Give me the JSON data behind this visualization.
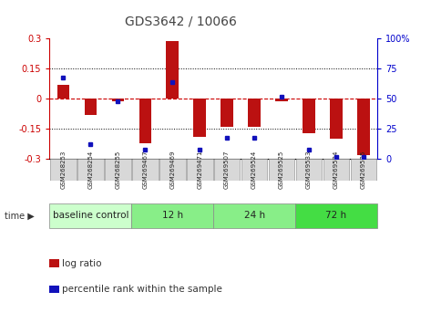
{
  "title": "GDS3642 / 10066",
  "samples": [
    "GSM268253",
    "GSM268254",
    "GSM268255",
    "GSM269467",
    "GSM269469",
    "GSM269471",
    "GSM269507",
    "GSM269524",
    "GSM269525",
    "GSM269533",
    "GSM269534",
    "GSM269535"
  ],
  "log_ratio": [
    0.07,
    -0.08,
    -0.01,
    -0.22,
    0.29,
    -0.19,
    -0.14,
    -0.14,
    -0.01,
    -0.17,
    -0.2,
    -0.28
  ],
  "percentile_rank": [
    68,
    12,
    48,
    8,
    64,
    8,
    18,
    18,
    52,
    8,
    2,
    2
  ],
  "groups": [
    {
      "label": "baseline control",
      "start": 0,
      "end": 3,
      "color": "#ccffcc"
    },
    {
      "label": "12 h",
      "start": 3,
      "end": 6,
      "color": "#88ee88"
    },
    {
      "label": "24 h",
      "start": 6,
      "end": 9,
      "color": "#88ee88"
    },
    {
      "label": "72 h",
      "start": 9,
      "end": 12,
      "color": "#44dd44"
    }
  ],
  "ylim": [
    -0.3,
    0.3
  ],
  "y_ticks_left": [
    -0.3,
    -0.15,
    0,
    0.15,
    0.3
  ],
  "y_ticks_right": [
    0,
    25,
    50,
    75,
    100
  ],
  "bar_color": "#bb1111",
  "dot_color": "#1111bb",
  "dotted_lines": [
    0.15,
    -0.15
  ],
  "zero_line_color": "#cc0000",
  "legend_bar_label": "log ratio",
  "legend_dot_label": "percentile rank within the sample",
  "time_label": "time ▶"
}
